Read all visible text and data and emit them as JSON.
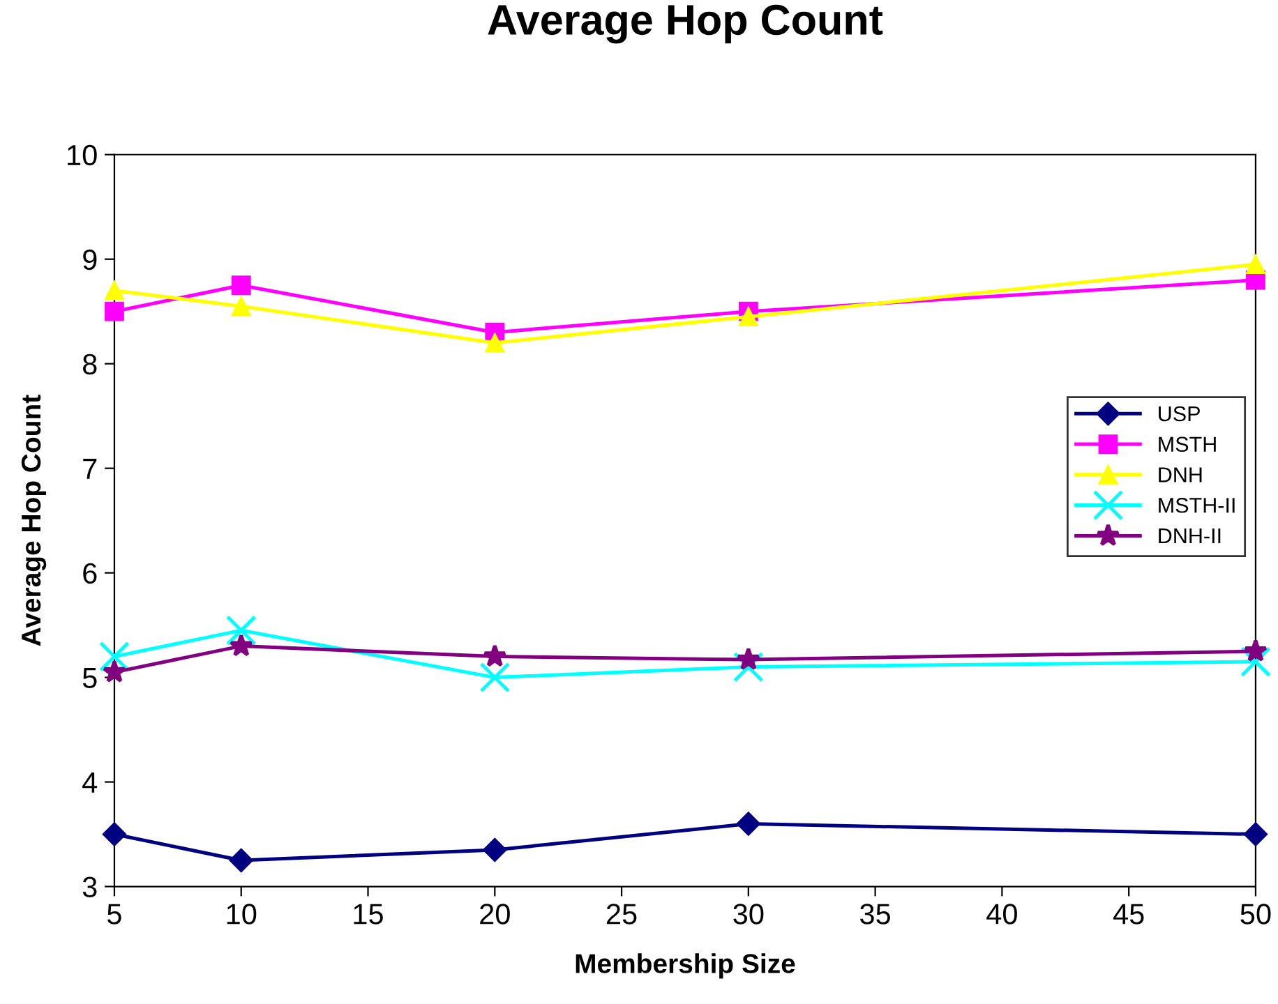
{
  "chart_data": {
    "type": "line",
    "title": "Average Hop Count",
    "xlabel": "Membership Size",
    "ylabel": "Average Hop Count",
    "x": [
      5,
      10,
      20,
      30,
      50
    ],
    "xlim": [
      5,
      50
    ],
    "xticks": [
      5,
      10,
      15,
      20,
      25,
      30,
      35,
      40,
      45,
      50
    ],
    "ylim": [
      3,
      10
    ],
    "yticks": [
      3,
      4,
      5,
      6,
      7,
      8,
      9,
      10
    ],
    "grid": false,
    "legend": "right",
    "line_style": "solid",
    "series": [
      {
        "name": "USP",
        "color": "#000080",
        "marker": "diamond",
        "values": [
          3.5,
          3.25,
          3.35,
          3.6,
          3.5
        ]
      },
      {
        "name": "MSTH",
        "color": "#ff00ff",
        "marker": "square",
        "values": [
          8.5,
          8.75,
          8.3,
          8.5,
          8.8
        ]
      },
      {
        "name": "DNH",
        "color": "#ffff00",
        "marker": "triangle",
        "values": [
          8.7,
          8.55,
          8.2,
          8.45,
          8.95
        ]
      },
      {
        "name": "MSTH-II",
        "color": "#00ffff",
        "marker": "cross",
        "values": [
          5.2,
          5.45,
          5.0,
          5.1,
          5.15
        ]
      },
      {
        "name": "DNH-II",
        "color": "#800080",
        "marker": "star",
        "values": [
          5.05,
          5.3,
          5.2,
          5.17,
          5.25
        ]
      }
    ]
  }
}
